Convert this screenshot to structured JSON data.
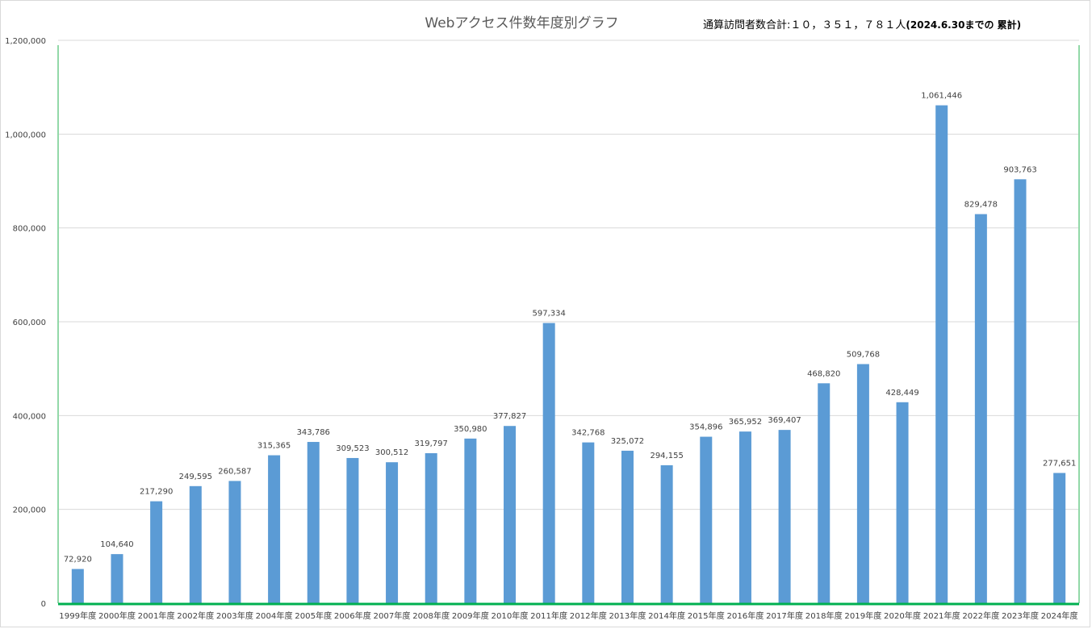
{
  "title": "Webアクセス件数年度別グラフ",
  "total_note": {
    "label": "通算訪問者数合計:１０，３５１，７８１人",
    "sub": "(2024.6.30までの 累計)"
  },
  "colors": {
    "bar": "#5b9bd5",
    "grid": "#d9d9d9",
    "axis": "#00b050",
    "plot_border": "#92d8a8",
    "text": "#404040"
  },
  "chart_data": {
    "type": "bar",
    "title": "Webアクセス件数年度別グラフ",
    "xlabel": "",
    "ylabel": "",
    "ylim": [
      0,
      1200000
    ],
    "yticks": [
      "0",
      "200,000",
      "400,000",
      "600,000",
      "800,000",
      "1,000,000",
      "1,200,000"
    ],
    "ytick_values": [
      0,
      200000,
      400000,
      600000,
      800000,
      1000000,
      1200000
    ],
    "grid": true,
    "legend": "none",
    "categories": [
      "1999年度",
      "2000年度",
      "2001年度",
      "2002年度",
      "2003年度",
      "2004年度",
      "2005年度",
      "2006年度",
      "2007年度",
      "2008年度",
      "2009年度",
      "2010年度",
      "2011年度",
      "2012年度",
      "2013年度",
      "2014年度",
      "2015年度",
      "2016年度",
      "2017年度",
      "2018年度",
      "2019年度",
      "2020年度",
      "2021年度",
      "2022年度",
      "2023年度",
      "2024年度"
    ],
    "values": [
      72920,
      104640,
      217290,
      249595,
      260587,
      315365,
      343786,
      309523,
      300512,
      319797,
      350980,
      377827,
      597334,
      342768,
      325072,
      294155,
      354896,
      365952,
      369407,
      468820,
      509768,
      428449,
      1061446,
      829478,
      903763,
      277651
    ],
    "data_labels": [
      "72,920",
      "104,640",
      "217,290",
      "249,595",
      "260,587",
      "315,365",
      "343,786",
      "309,523",
      "300,512",
      "319,797",
      "350,980",
      "377,827",
      "597,334",
      "342,768",
      "325,072",
      "294,155",
      "354,896",
      "365,952",
      "369,407",
      "468,820",
      "509,768",
      "428,449",
      "1,061,446",
      "829,478",
      "903,763",
      "277,651"
    ]
  }
}
